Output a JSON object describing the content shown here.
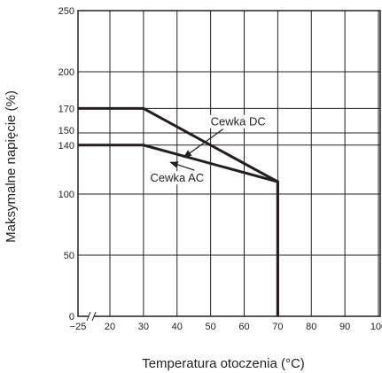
{
  "chart_data": {
    "type": "line",
    "xlabel": "Temperatura otoczenia (°C)",
    "ylabel": "Maksymalne napięcie (%)",
    "x_ticks": [
      -25,
      20,
      30,
      40,
      50,
      60,
      70,
      80,
      90,
      100
    ],
    "x_tick_labels": [
      "−25",
      "20",
      "30",
      "40",
      "50",
      "60",
      "70",
      "80",
      "90",
      "100"
    ],
    "y_ticks": [
      0,
      50,
      100,
      140,
      150,
      170,
      200,
      250
    ],
    "y_tick_labels": [
      "0",
      "50",
      "100",
      "140",
      "150",
      "170",
      "200",
      "250"
    ],
    "xlim": [
      -25,
      100
    ],
    "ylim": [
      0,
      250
    ],
    "x_axis_break": true,
    "grid": true,
    "series": [
      {
        "name": "Cewka DC",
        "x": [
          -25,
          30,
          70,
          70
        ],
        "y": [
          170,
          170,
          110,
          0
        ]
      },
      {
        "name": "Cewka AC",
        "x": [
          -25,
          30,
          70,
          70
        ],
        "y": [
          140,
          140,
          110,
          0
        ]
      }
    ],
    "annotations": [
      {
        "text": "Cewka DC",
        "x": 50,
        "y": 156,
        "arrow_to": [
          42,
          130
        ]
      },
      {
        "text": "Cewka AC",
        "x": 32,
        "y": 110,
        "arrow_to": [
          38,
          126
        ]
      }
    ]
  }
}
